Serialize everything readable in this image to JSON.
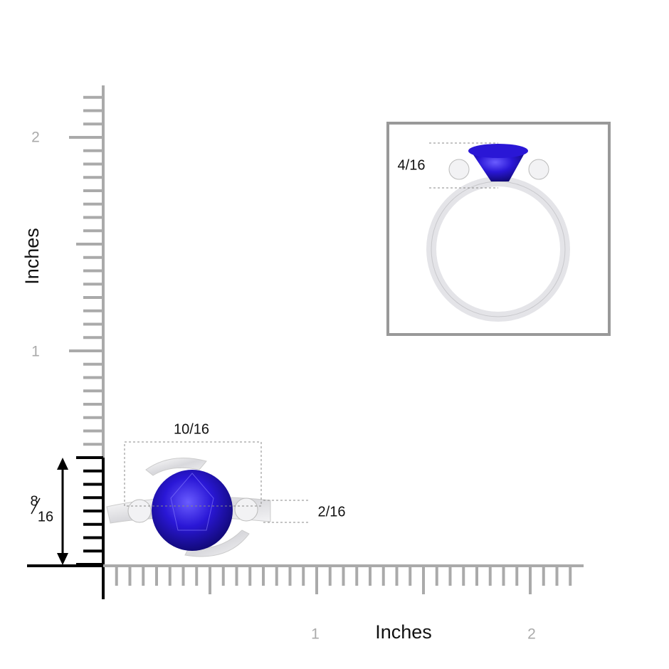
{
  "y_axis": {
    "label": "Inches",
    "tick_labels": [
      "2",
      "1"
    ]
  },
  "x_axis": {
    "label": "Inches",
    "tick_labels": [
      "1",
      "2"
    ]
  },
  "dimensions": {
    "width": "10/16",
    "side_height": "2/16",
    "height_numerator": "8",
    "height_denominator": "16",
    "inset_height": "4/16"
  }
}
